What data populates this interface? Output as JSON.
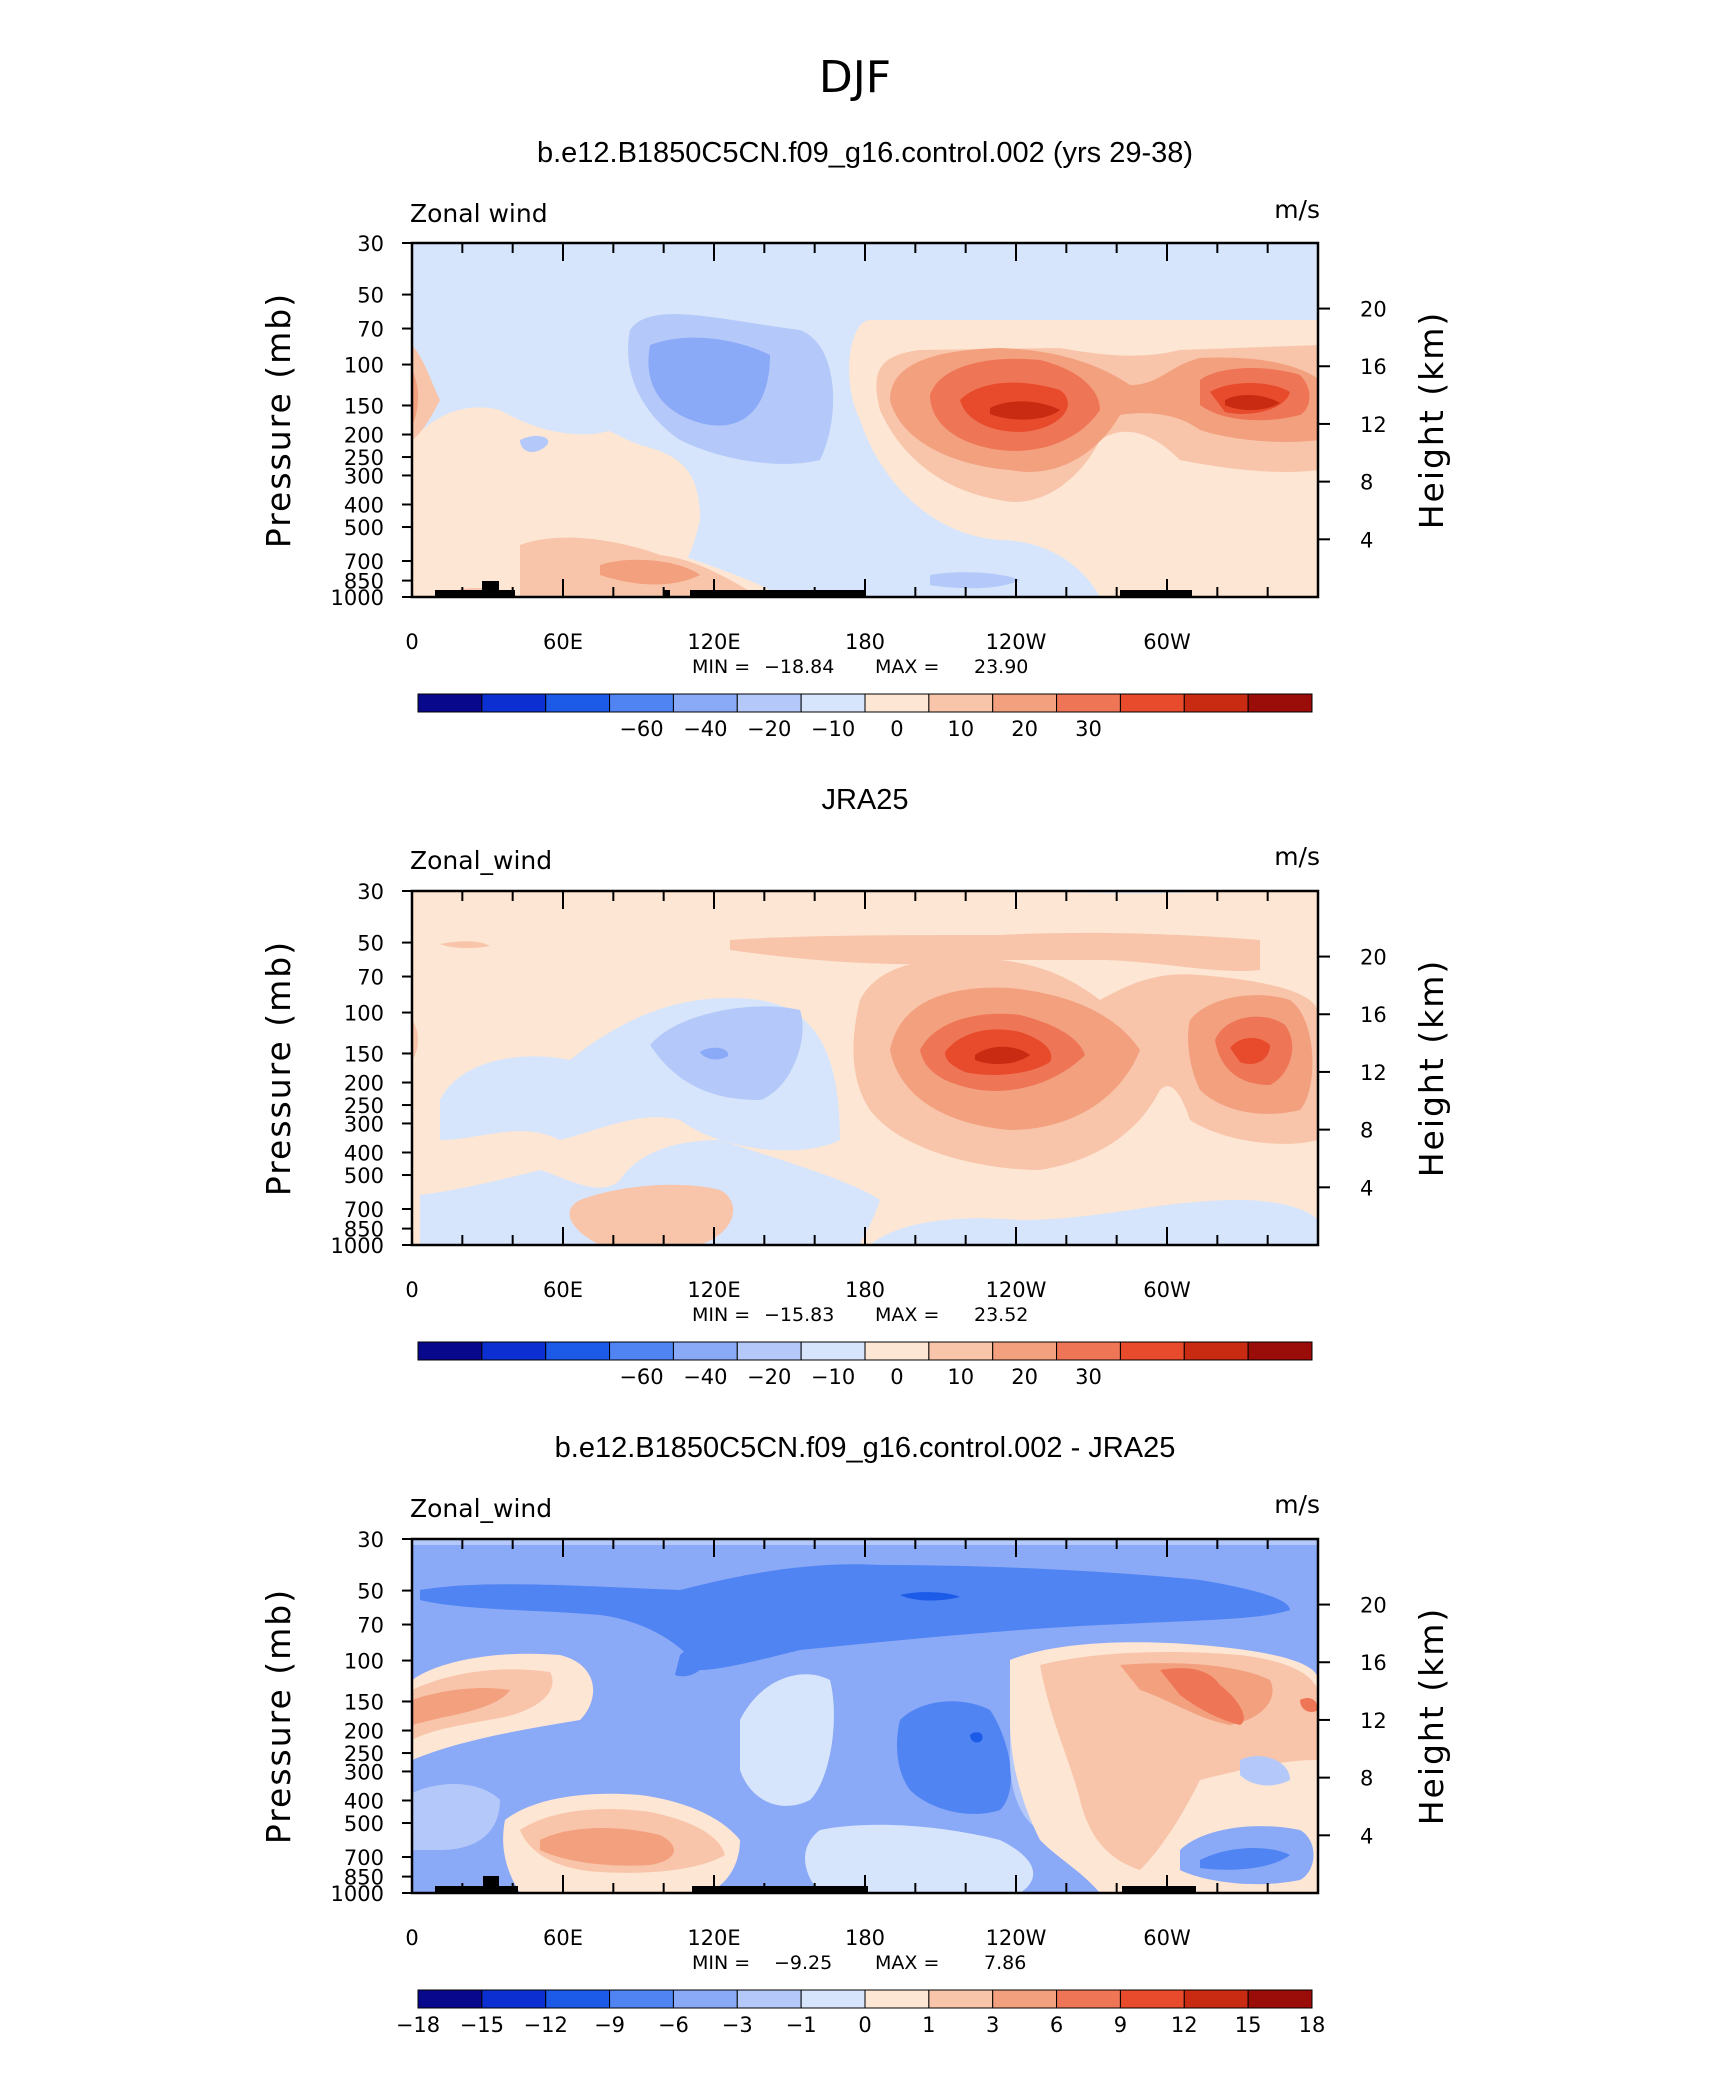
{
  "figure_title": "DJF",
  "colors": {
    "base": [
      "#08088c",
      "#0b2fd1",
      "#1c5ae8",
      "#4f84f2",
      "#8aa9f7",
      "#b4c9f9",
      "#d6e5fb",
      "#fde6d4",
      "#f8c5aa",
      "#f3a07f",
      "#ee7656",
      "#e84a2c",
      "#c92a12",
      "#9b0d08"
    ],
    "diff": [
      "#08088c",
      "#0b2fd1",
      "#1c5ae8",
      "#4f84f2",
      "#8aa9f7",
      "#b4c9f9",
      "#d6e5fb",
      "#fde6d4",
      "#f8c5aa",
      "#f3a07f",
      "#ee7656",
      "#e84a2c",
      "#c92a12",
      "#9b0d08"
    ]
  },
  "common": {
    "y_left_label": "Pressure (mb)",
    "y_right_label": "Height (km)",
    "y_left_ticks": [
      "30",
      "50",
      "70",
      "100",
      "150",
      "200",
      "250",
      "300",
      "400",
      "500",
      "700",
      "850",
      "1000"
    ],
    "y_right_ticks": [
      "20",
      "16",
      "12",
      "8",
      "4"
    ],
    "x_ticks": [
      "0",
      "60E",
      "120E",
      "180",
      "120W",
      "60W"
    ],
    "units": "m/s",
    "min_label": "MIN =",
    "max_label": "MAX ="
  },
  "chart_data": [
    {
      "type": "heatmap",
      "title": "b.e12.B1850C5CN.f09_g16.control.002 (yrs 29-38)",
      "variable": "Zonal wind",
      "min": "−18.84",
      "max": "23.90",
      "colorbar_labels": [
        "−60",
        "−40",
        "−20",
        "−10",
        "0",
        "10",
        "20",
        "30"
      ]
    },
    {
      "type": "heatmap",
      "title": "JRA25",
      "variable": "Zonal_wind",
      "min": "−15.83",
      "max": "23.52",
      "colorbar_labels": [
        "−60",
        "−40",
        "−20",
        "−10",
        "0",
        "10",
        "20",
        "30"
      ]
    },
    {
      "type": "heatmap",
      "title": "b.e12.B1850C5CN.f09_g16.control.002 - JRA25",
      "variable": "Zonal_wind",
      "min": "−9.25",
      "max": "7.86",
      "colorbar_labels": [
        "−18",
        "−15",
        "−12",
        "−9",
        "−6",
        "−3",
        "−1",
        "0",
        "1",
        "3",
        "6",
        "9",
        "12",
        "15",
        "18"
      ]
    }
  ]
}
